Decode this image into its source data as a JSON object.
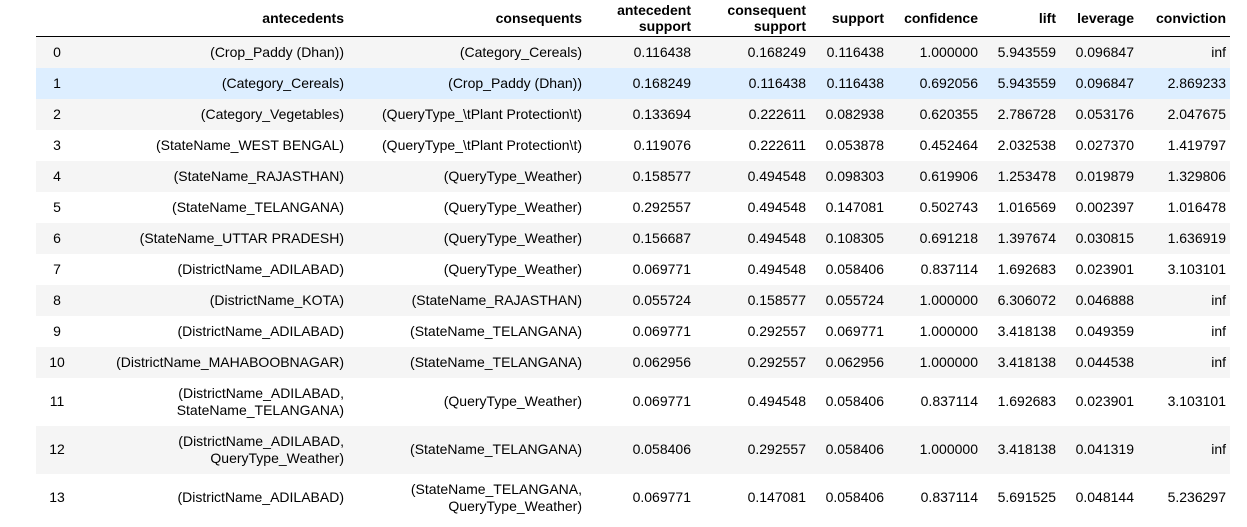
{
  "table": {
    "columns": [
      "",
      "antecedents",
      "consequents",
      "antecedent support",
      "consequent support",
      "support",
      "confidence",
      "lift",
      "leverage",
      "conviction"
    ],
    "rows": [
      {
        "index": "0",
        "antecedents": [
          "(Crop_Paddy (Dhan))"
        ],
        "consequents": [
          "(Category_Cereals)"
        ],
        "antecedent_support": "0.116438",
        "consequent_support": "0.168249",
        "support": "0.116438",
        "confidence": "1.000000",
        "lift": "5.943559",
        "leverage": "0.096847",
        "conviction": "inf"
      },
      {
        "index": "1",
        "antecedents": [
          "(Category_Cereals)"
        ],
        "consequents": [
          "(Crop_Paddy (Dhan))"
        ],
        "antecedent_support": "0.168249",
        "consequent_support": "0.116438",
        "support": "0.116438",
        "confidence": "0.692056",
        "lift": "5.943559",
        "leverage": "0.096847",
        "conviction": "2.869233"
      },
      {
        "index": "2",
        "antecedents": [
          "(Category_Vegetables)"
        ],
        "consequents": [
          "(QueryType_\\tPlant Protection\\t)"
        ],
        "antecedent_support": "0.133694",
        "consequent_support": "0.222611",
        "support": "0.082938",
        "confidence": "0.620355",
        "lift": "2.786728",
        "leverage": "0.053176",
        "conviction": "2.047675"
      },
      {
        "index": "3",
        "antecedents": [
          "(StateName_WEST BENGAL)"
        ],
        "consequents": [
          "(QueryType_\\tPlant Protection\\t)"
        ],
        "antecedent_support": "0.119076",
        "consequent_support": "0.222611",
        "support": "0.053878",
        "confidence": "0.452464",
        "lift": "2.032538",
        "leverage": "0.027370",
        "conviction": "1.419797"
      },
      {
        "index": "4",
        "antecedents": [
          "(StateName_RAJASTHAN)"
        ],
        "consequents": [
          "(QueryType_Weather)"
        ],
        "antecedent_support": "0.158577",
        "consequent_support": "0.494548",
        "support": "0.098303",
        "confidence": "0.619906",
        "lift": "1.253478",
        "leverage": "0.019879",
        "conviction": "1.329806"
      },
      {
        "index": "5",
        "antecedents": [
          "(StateName_TELANGANA)"
        ],
        "consequents": [
          "(QueryType_Weather)"
        ],
        "antecedent_support": "0.292557",
        "consequent_support": "0.494548",
        "support": "0.147081",
        "confidence": "0.502743",
        "lift": "1.016569",
        "leverage": "0.002397",
        "conviction": "1.016478"
      },
      {
        "index": "6",
        "antecedents": [
          "(StateName_UTTAR PRADESH)"
        ],
        "consequents": [
          "(QueryType_Weather)"
        ],
        "antecedent_support": "0.156687",
        "consequent_support": "0.494548",
        "support": "0.108305",
        "confidence": "0.691218",
        "lift": "1.397674",
        "leverage": "0.030815",
        "conviction": "1.636919"
      },
      {
        "index": "7",
        "antecedents": [
          "(DistrictName_ADILABAD)"
        ],
        "consequents": [
          "(QueryType_Weather)"
        ],
        "antecedent_support": "0.069771",
        "consequent_support": "0.494548",
        "support": "0.058406",
        "confidence": "0.837114",
        "lift": "1.692683",
        "leverage": "0.023901",
        "conviction": "3.103101"
      },
      {
        "index": "8",
        "antecedents": [
          "(DistrictName_KOTA)"
        ],
        "consequents": [
          "(StateName_RAJASTHAN)"
        ],
        "antecedent_support": "0.055724",
        "consequent_support": "0.158577",
        "support": "0.055724",
        "confidence": "1.000000",
        "lift": "6.306072",
        "leverage": "0.046888",
        "conviction": "inf"
      },
      {
        "index": "9",
        "antecedents": [
          "(DistrictName_ADILABAD)"
        ],
        "consequents": [
          "(StateName_TELANGANA)"
        ],
        "antecedent_support": "0.069771",
        "consequent_support": "0.292557",
        "support": "0.069771",
        "confidence": "1.000000",
        "lift": "3.418138",
        "leverage": "0.049359",
        "conviction": "inf"
      },
      {
        "index": "10",
        "antecedents": [
          "(DistrictName_MAHABOOBNAGAR)"
        ],
        "consequents": [
          "(StateName_TELANGANA)"
        ],
        "antecedent_support": "0.062956",
        "consequent_support": "0.292557",
        "support": "0.062956",
        "confidence": "1.000000",
        "lift": "3.418138",
        "leverage": "0.044538",
        "conviction": "inf"
      },
      {
        "index": "11",
        "antecedents": [
          "(DistrictName_ADILABAD,",
          "StateName_TELANGANA)"
        ],
        "consequents": [
          "(QueryType_Weather)"
        ],
        "antecedent_support": "0.069771",
        "consequent_support": "0.494548",
        "support": "0.058406",
        "confidence": "0.837114",
        "lift": "1.692683",
        "leverage": "0.023901",
        "conviction": "3.103101"
      },
      {
        "index": "12",
        "antecedents": [
          "(DistrictName_ADILABAD,",
          "QueryType_Weather)"
        ],
        "consequents": [
          "(StateName_TELANGANA)"
        ],
        "antecedent_support": "0.058406",
        "consequent_support": "0.292557",
        "support": "0.058406",
        "confidence": "1.000000",
        "lift": "3.418138",
        "leverage": "0.041319",
        "conviction": "inf"
      },
      {
        "index": "13",
        "antecedents": [
          "(DistrictName_ADILABAD)"
        ],
        "consequents": [
          "(StateName_TELANGANA,",
          "QueryType_Weather)"
        ],
        "antecedent_support": "0.069771",
        "consequent_support": "0.147081",
        "support": "0.058406",
        "confidence": "0.837114",
        "lift": "5.691525",
        "leverage": "0.048144",
        "conviction": "5.236297"
      }
    ],
    "hovered_row_index": "1",
    "colors": {
      "hover_row": "#ddeeff",
      "striped_row": "#f5f5f5",
      "header_border": "#000000"
    }
  }
}
